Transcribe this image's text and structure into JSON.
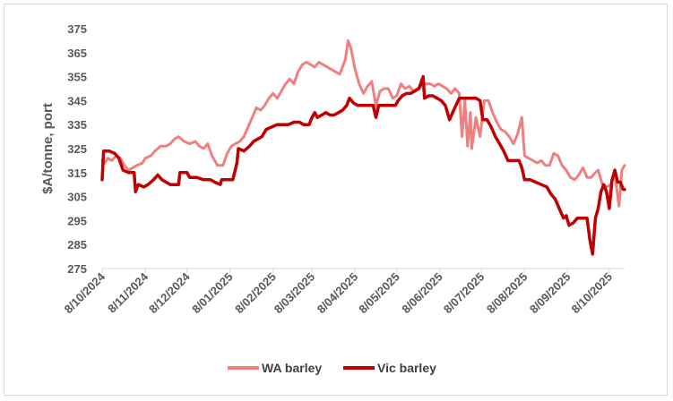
{
  "chart_data": {
    "type": "line",
    "title": "",
    "xlabel": "",
    "ylabel": "$A/tonne, port",
    "ylim": [
      275,
      375
    ],
    "y_ticks": [
      275,
      285,
      295,
      305,
      315,
      325,
      335,
      345,
      355,
      365,
      375
    ],
    "x_ticks": [
      "8/10/2024",
      "8/11/2024",
      "8/12/2024",
      "8/01/2025",
      "8/02/2025",
      "8/03/2025",
      "8/04/2025",
      "8/05/2025",
      "8/06/2025",
      "8/07/2025",
      "8/08/2025",
      "8/09/2025",
      "8/10/2025"
    ],
    "grid": false,
    "legend": "bottom",
    "series": [
      {
        "name": "WA barley",
        "color": "#f08080",
        "points": [
          [
            "2024-10-08",
            320
          ],
          [
            "2024-10-10",
            319
          ],
          [
            "2024-10-12",
            321
          ],
          [
            "2024-10-15",
            320
          ],
          [
            "2024-10-18",
            322
          ],
          [
            "2024-10-21",
            321
          ],
          [
            "2024-10-24",
            318
          ],
          [
            "2024-10-27",
            316
          ],
          [
            "2024-10-30",
            317
          ],
          [
            "2024-11-02",
            318
          ],
          [
            "2024-11-06",
            319
          ],
          [
            "2024-11-08",
            321
          ],
          [
            "2024-11-12",
            322
          ],
          [
            "2024-11-15",
            324
          ],
          [
            "2024-11-19",
            326
          ],
          [
            "2024-11-23",
            326
          ],
          [
            "2024-11-26",
            327
          ],
          [
            "2024-11-29",
            329
          ],
          [
            "2024-12-02",
            330
          ],
          [
            "2024-12-06",
            328
          ],
          [
            "2024-12-10",
            327
          ],
          [
            "2024-12-14",
            328
          ],
          [
            "2024-12-17",
            326
          ],
          [
            "2024-12-20",
            325
          ],
          [
            "2024-12-23",
            327
          ],
          [
            "2024-12-26",
            322
          ],
          [
            "2024-12-30",
            318
          ],
          [
            "2025-01-03",
            318
          ],
          [
            "2025-01-06",
            323
          ],
          [
            "2025-01-09",
            326
          ],
          [
            "2025-01-12",
            327
          ],
          [
            "2025-01-15",
            328
          ],
          [
            "2025-01-18",
            330
          ],
          [
            "2025-01-21",
            334
          ],
          [
            "2025-01-24",
            338
          ],
          [
            "2025-01-27",
            342
          ],
          [
            "2025-01-30",
            341
          ],
          [
            "2025-02-02",
            343
          ],
          [
            "2025-02-05",
            346
          ],
          [
            "2025-02-08",
            348
          ],
          [
            "2025-02-11",
            346
          ],
          [
            "2025-02-14",
            349
          ],
          [
            "2025-02-17",
            352
          ],
          [
            "2025-02-20",
            354
          ],
          [
            "2025-02-23",
            352
          ],
          [
            "2025-02-26",
            357
          ],
          [
            "2025-03-01",
            360
          ],
          [
            "2025-03-04",
            361
          ],
          [
            "2025-03-07",
            360
          ],
          [
            "2025-03-10",
            359
          ],
          [
            "2025-03-13",
            361
          ],
          [
            "2025-03-16",
            360
          ],
          [
            "2025-03-19",
            359
          ],
          [
            "2025-03-22",
            358
          ],
          [
            "2025-03-25",
            357
          ],
          [
            "2025-03-28",
            356
          ],
          [
            "2025-04-01",
            362
          ],
          [
            "2025-04-03",
            370
          ],
          [
            "2025-04-05",
            367
          ],
          [
            "2025-04-08",
            358
          ],
          [
            "2025-04-11",
            352
          ],
          [
            "2025-04-14",
            348
          ],
          [
            "2025-04-17",
            351
          ],
          [
            "2025-04-20",
            353
          ],
          [
            "2025-04-23",
            343
          ],
          [
            "2025-04-26",
            349
          ],
          [
            "2025-04-29",
            350
          ],
          [
            "2025-05-02",
            350
          ],
          [
            "2025-05-05",
            346
          ],
          [
            "2025-05-08",
            347
          ],
          [
            "2025-05-11",
            352
          ],
          [
            "2025-05-14",
            350
          ],
          [
            "2025-05-17",
            351
          ],
          [
            "2025-05-20",
            349
          ],
          [
            "2025-05-23",
            350
          ],
          [
            "2025-05-26",
            351
          ],
          [
            "2025-05-29",
            352
          ],
          [
            "2025-06-01",
            352
          ],
          [
            "2025-06-04",
            351
          ],
          [
            "2025-06-07",
            352
          ],
          [
            "2025-06-10",
            351
          ],
          [
            "2025-06-13",
            350
          ],
          [
            "2025-06-16",
            348
          ],
          [
            "2025-06-19",
            350
          ],
          [
            "2025-06-22",
            348
          ],
          [
            "2025-06-24",
            330
          ],
          [
            "2025-06-26",
            345
          ],
          [
            "2025-06-28",
            326
          ],
          [
            "2025-06-30",
            340
          ],
          [
            "2025-07-01",
            325
          ],
          [
            "2025-07-04",
            338
          ],
          [
            "2025-07-07",
            330
          ],
          [
            "2025-07-10",
            345
          ],
          [
            "2025-07-13",
            345
          ],
          [
            "2025-07-16",
            340
          ],
          [
            "2025-07-19",
            336
          ],
          [
            "2025-07-22",
            333
          ],
          [
            "2025-07-25",
            332
          ],
          [
            "2025-07-28",
            330
          ],
          [
            "2025-07-31",
            327
          ],
          [
            "2025-08-03",
            331
          ],
          [
            "2025-08-06",
            338
          ],
          [
            "2025-08-08",
            322
          ],
          [
            "2025-08-11",
            321
          ],
          [
            "2025-08-14",
            320
          ],
          [
            "2025-08-17",
            319
          ],
          [
            "2025-08-20",
            320
          ],
          [
            "2025-08-23",
            318
          ],
          [
            "2025-08-26",
            318
          ],
          [
            "2025-08-29",
            323
          ],
          [
            "2025-09-01",
            322
          ],
          [
            "2025-09-04",
            318
          ],
          [
            "2025-09-07",
            316
          ],
          [
            "2025-09-10",
            313
          ],
          [
            "2025-09-13",
            312
          ],
          [
            "2025-09-16",
            314
          ],
          [
            "2025-09-19",
            317
          ],
          [
            "2025-09-22",
            313
          ],
          [
            "2025-09-25",
            313
          ],
          [
            "2025-09-28",
            315
          ],
          [
            "2025-09-30",
            316
          ],
          [
            "2025-10-03",
            310
          ],
          [
            "2025-10-06",
            309
          ],
          [
            "2025-10-09",
            310
          ],
          [
            "2025-10-12",
            314
          ],
          [
            "2025-10-15",
            301
          ],
          [
            "2025-10-17",
            316
          ],
          [
            "2025-10-19",
            318
          ]
        ]
      },
      {
        "name": "Vic barley",
        "color": "#c00000",
        "points": [
          [
            "2024-10-08",
            312
          ],
          [
            "2024-10-09",
            324
          ],
          [
            "2024-10-13",
            324
          ],
          [
            "2024-10-17",
            323
          ],
          [
            "2024-10-20",
            321
          ],
          [
            "2024-10-23",
            316
          ],
          [
            "2024-10-27",
            315
          ],
          [
            "2024-10-31",
            315
          ],
          [
            "2024-11-01",
            307
          ],
          [
            "2024-11-03",
            310
          ],
          [
            "2024-11-07",
            309
          ],
          [
            "2024-11-10",
            310
          ],
          [
            "2024-11-14",
            312
          ],
          [
            "2024-11-17",
            314
          ],
          [
            "2024-11-20",
            312
          ],
          [
            "2024-11-23",
            311
          ],
          [
            "2024-11-26",
            310
          ],
          [
            "2024-11-29",
            310
          ],
          [
            "2024-12-02",
            310
          ],
          [
            "2024-12-03",
            315
          ],
          [
            "2024-12-08",
            315
          ],
          [
            "2024-12-10",
            313
          ],
          [
            "2024-12-15",
            313
          ],
          [
            "2024-12-20",
            312
          ],
          [
            "2024-12-25",
            312
          ],
          [
            "2024-12-28",
            311
          ],
          [
            "2025-01-01",
            310
          ],
          [
            "2025-01-02",
            312
          ],
          [
            "2025-01-06",
            312
          ],
          [
            "2025-01-10",
            312
          ],
          [
            "2025-01-13",
            319
          ],
          [
            "2025-01-14",
            325
          ],
          [
            "2025-01-18",
            324
          ],
          [
            "2025-01-22",
            326
          ],
          [
            "2025-01-25",
            328
          ],
          [
            "2025-01-28",
            329
          ],
          [
            "2025-01-31",
            330
          ],
          [
            "2025-02-03",
            333
          ],
          [
            "2025-02-07",
            334
          ],
          [
            "2025-02-11",
            335
          ],
          [
            "2025-02-15",
            335
          ],
          [
            "2025-02-19",
            335
          ],
          [
            "2025-02-23",
            336
          ],
          [
            "2025-02-27",
            336
          ],
          [
            "2025-03-02",
            335
          ],
          [
            "2025-03-06",
            335
          ],
          [
            "2025-03-08",
            338
          ],
          [
            "2025-03-10",
            340
          ],
          [
            "2025-03-12",
            338
          ],
          [
            "2025-03-15",
            339
          ],
          [
            "2025-03-18",
            340
          ],
          [
            "2025-03-21",
            339
          ],
          [
            "2025-03-24",
            339
          ],
          [
            "2025-03-27",
            340
          ],
          [
            "2025-03-30",
            341
          ],
          [
            "2025-04-02",
            343
          ],
          [
            "2025-04-04",
            346
          ],
          [
            "2025-04-07",
            344
          ],
          [
            "2025-04-10",
            343
          ],
          [
            "2025-04-14",
            343
          ],
          [
            "2025-04-18",
            343
          ],
          [
            "2025-04-21",
            343
          ],
          [
            "2025-04-23",
            338
          ],
          [
            "2025-04-25",
            343
          ],
          [
            "2025-04-29",
            343
          ],
          [
            "2025-05-03",
            343
          ],
          [
            "2025-05-07",
            343
          ],
          [
            "2025-05-09",
            345
          ],
          [
            "2025-05-12",
            347
          ],
          [
            "2025-05-15",
            348
          ],
          [
            "2025-05-18",
            348
          ],
          [
            "2025-05-21",
            349
          ],
          [
            "2025-05-24",
            350
          ],
          [
            "2025-05-27",
            355
          ],
          [
            "2025-05-28",
            346
          ],
          [
            "2025-05-31",
            347
          ],
          [
            "2025-06-03",
            347
          ],
          [
            "2025-06-06",
            346
          ],
          [
            "2025-06-09",
            345
          ],
          [
            "2025-06-12",
            343
          ],
          [
            "2025-06-15",
            337
          ],
          [
            "2025-06-18",
            341
          ],
          [
            "2025-06-22",
            346
          ],
          [
            "2025-06-26",
            346
          ],
          [
            "2025-06-30",
            346
          ],
          [
            "2025-07-04",
            346
          ],
          [
            "2025-07-07",
            345
          ],
          [
            "2025-07-09",
            337
          ],
          [
            "2025-07-12",
            337
          ],
          [
            "2025-07-15",
            334
          ],
          [
            "2025-07-18",
            330
          ],
          [
            "2025-07-21",
            327
          ],
          [
            "2025-07-24",
            324
          ],
          [
            "2025-07-27",
            320
          ],
          [
            "2025-07-31",
            320
          ],
          [
            "2025-08-04",
            320
          ],
          [
            "2025-08-06",
            317
          ],
          [
            "2025-08-08",
            312
          ],
          [
            "2025-08-12",
            312
          ],
          [
            "2025-08-16",
            311
          ],
          [
            "2025-08-20",
            310
          ],
          [
            "2025-08-24",
            309
          ],
          [
            "2025-08-27",
            306
          ],
          [
            "2025-08-30",
            304
          ],
          [
            "2025-09-02",
            300
          ],
          [
            "2025-09-05",
            296
          ],
          [
            "2025-09-07",
            297
          ],
          [
            "2025-09-09",
            293
          ],
          [
            "2025-09-12",
            294
          ],
          [
            "2025-09-15",
            296
          ],
          [
            "2025-09-18",
            296
          ],
          [
            "2025-09-22",
            296
          ],
          [
            "2025-09-24",
            287
          ],
          [
            "2025-09-26",
            281
          ],
          [
            "2025-09-28",
            296
          ],
          [
            "2025-09-30",
            300
          ],
          [
            "2025-10-02",
            307
          ],
          [
            "2025-10-04",
            310
          ],
          [
            "2025-10-06",
            307
          ],
          [
            "2025-10-08",
            300
          ],
          [
            "2025-10-10",
            312
          ],
          [
            "2025-10-12",
            316
          ],
          [
            "2025-10-14",
            311
          ],
          [
            "2025-10-16",
            311
          ],
          [
            "2025-10-18",
            308
          ],
          [
            "2025-10-19",
            308
          ]
        ]
      }
    ]
  }
}
